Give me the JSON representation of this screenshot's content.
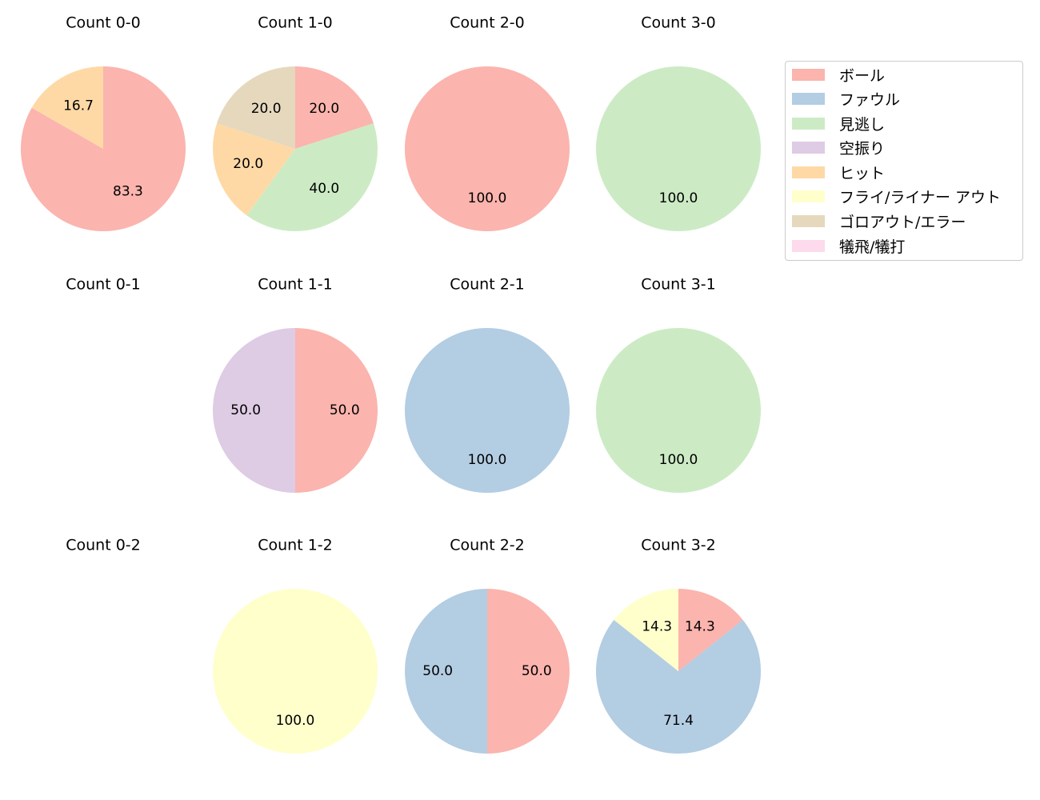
{
  "legend": {
    "items": [
      {
        "label": "ボール",
        "color": "#FBB4AE"
      },
      {
        "label": "ファウル",
        "color": "#B3CDE3"
      },
      {
        "label": "見逃し",
        "color": "#CCEBC5"
      },
      {
        "label": "空振り",
        "color": "#DECBE4"
      },
      {
        "label": "ヒット",
        "color": "#FED9A6"
      },
      {
        "label": "フライ/ライナー アウト",
        "color": "#FFFFCC"
      },
      {
        "label": "ゴロアウト/エラー",
        "color": "#E5D8BD"
      },
      {
        "label": "犠飛/犠打",
        "color": "#FDDAEC"
      }
    ]
  },
  "chart_data": [
    {
      "type": "pie",
      "title": "Count 0-0",
      "slices": [
        {
          "category": "ボール",
          "value": 83.3,
          "label": "83.3"
        },
        {
          "category": "ヒット",
          "value": 16.7,
          "label": "16.7"
        }
      ]
    },
    {
      "type": "pie",
      "title": "Count 1-0",
      "slices": [
        {
          "category": "ボール",
          "value": 20.0,
          "label": "20.0"
        },
        {
          "category": "見逃し",
          "value": 40.0,
          "label": "40.0"
        },
        {
          "category": "ヒット",
          "value": 20.0,
          "label": "20.0"
        },
        {
          "category": "ゴロアウト/エラー",
          "value": 20.0,
          "label": "20.0"
        }
      ]
    },
    {
      "type": "pie",
      "title": "Count 2-0",
      "slices": [
        {
          "category": "ボール",
          "value": 100.0,
          "label": "100.0"
        }
      ]
    },
    {
      "type": "pie",
      "title": "Count 3-0",
      "slices": [
        {
          "category": "見逃し",
          "value": 100.0,
          "label": "100.0"
        }
      ]
    },
    {
      "type": "pie",
      "title": "Count 0-1",
      "slices": []
    },
    {
      "type": "pie",
      "title": "Count 1-1",
      "slices": [
        {
          "category": "ボール",
          "value": 50.0,
          "label": "50.0"
        },
        {
          "category": "空振り",
          "value": 50.0,
          "label": "50.0"
        }
      ]
    },
    {
      "type": "pie",
      "title": "Count 2-1",
      "slices": [
        {
          "category": "ファウル",
          "value": 100.0,
          "label": "100.0"
        }
      ]
    },
    {
      "type": "pie",
      "title": "Count 3-1",
      "slices": [
        {
          "category": "見逃し",
          "value": 100.0,
          "label": "100.0"
        }
      ]
    },
    {
      "type": "pie",
      "title": "Count 0-2",
      "slices": []
    },
    {
      "type": "pie",
      "title": "Count 1-2",
      "slices": [
        {
          "category": "フライ/ライナー アウト",
          "value": 100.0,
          "label": "100.0"
        }
      ]
    },
    {
      "type": "pie",
      "title": "Count 2-2",
      "slices": [
        {
          "category": "ボール",
          "value": 50.0,
          "label": "50.0"
        },
        {
          "category": "ファウル",
          "value": 50.0,
          "label": "50.0"
        }
      ]
    },
    {
      "type": "pie",
      "title": "Count 3-2",
      "slices": [
        {
          "category": "ボール",
          "value": 14.3,
          "label": "14.3"
        },
        {
          "category": "ファウル",
          "value": 71.4,
          "label": "71.4"
        },
        {
          "category": "フライ/ライナー アウト",
          "value": 14.3,
          "label": "14.3"
        }
      ]
    }
  ]
}
